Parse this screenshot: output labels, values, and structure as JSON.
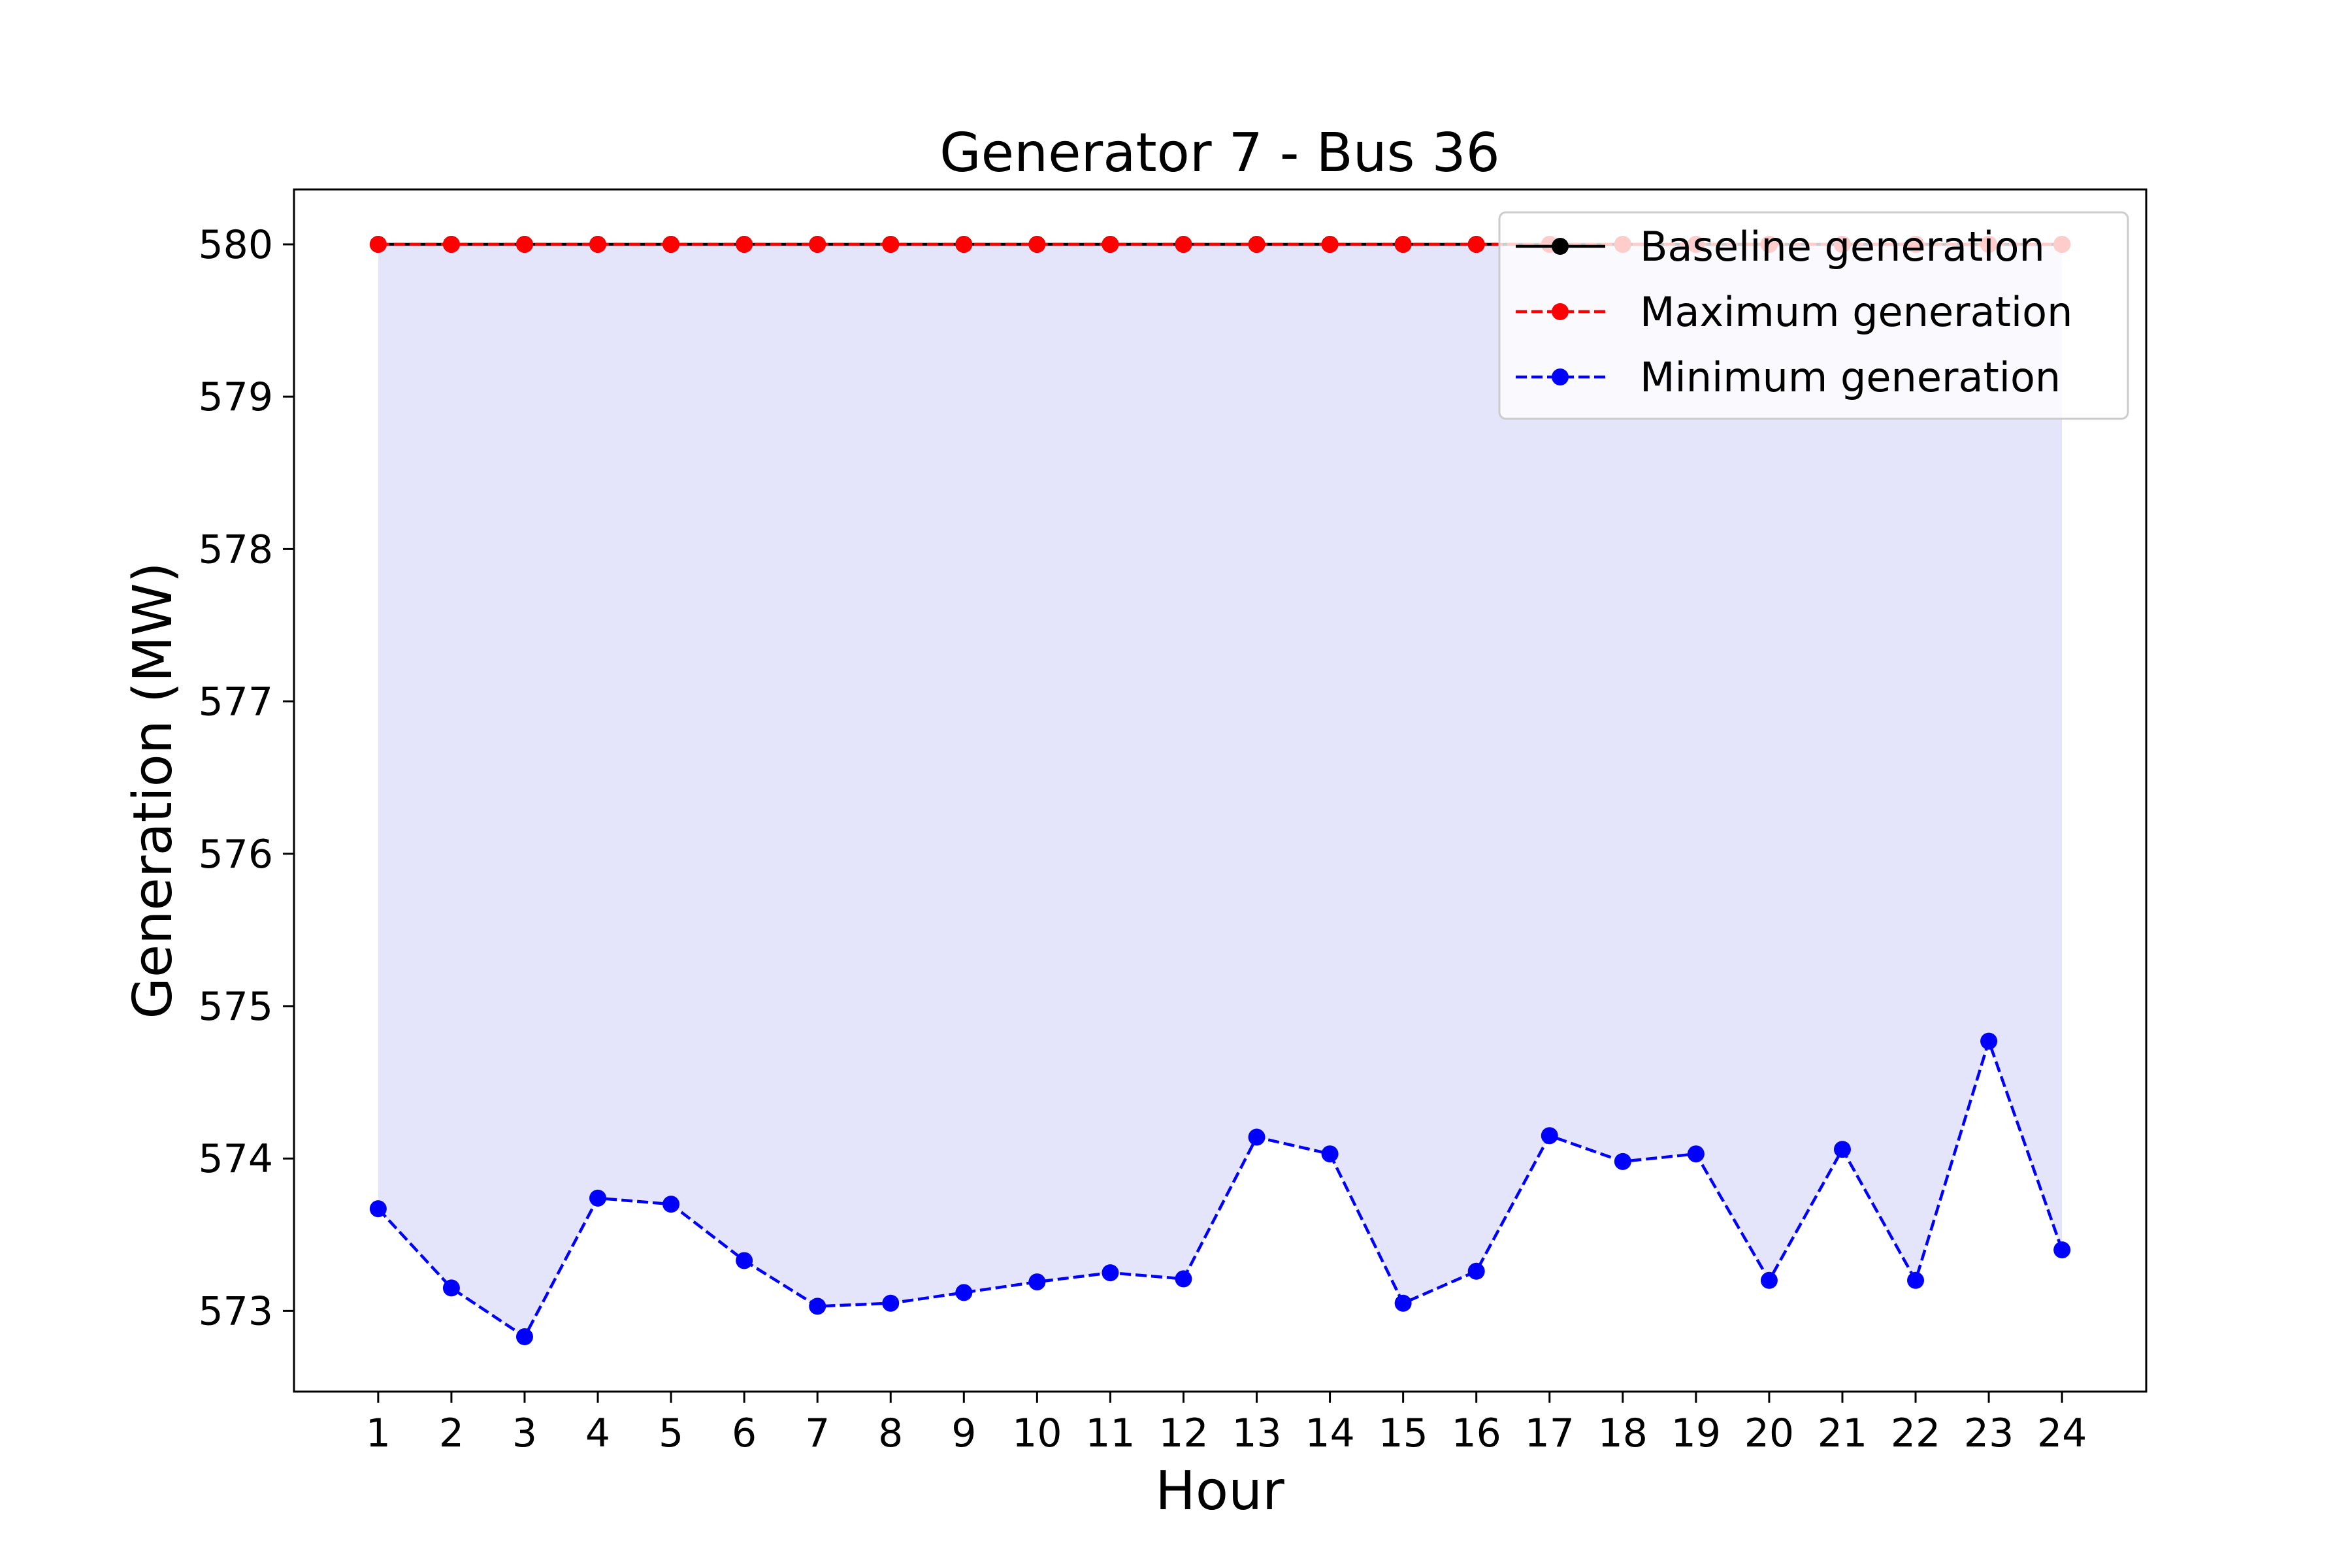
{
  "chart_data": {
    "type": "line",
    "title": "Generator 7 - Bus 36",
    "xlabel": "Hour",
    "ylabel": "Generation (MW)",
    "categories": [
      "1",
      "2",
      "3",
      "4",
      "5",
      "6",
      "7",
      "8",
      "9",
      "10",
      "11",
      "12",
      "13",
      "14",
      "15",
      "16",
      "17",
      "18",
      "19",
      "20",
      "21",
      "22",
      "23",
      "24"
    ],
    "x": [
      1,
      2,
      3,
      4,
      5,
      6,
      7,
      8,
      9,
      10,
      11,
      12,
      13,
      14,
      15,
      16,
      17,
      18,
      19,
      20,
      21,
      22,
      23,
      24
    ],
    "xlim": [
      -0.15,
      25.15
    ],
    "ylim": [
      572.47,
      580.36
    ],
    "yticks": [
      573,
      574,
      575,
      576,
      577,
      578,
      579,
      580
    ],
    "ytick_labels": [
      "573",
      "574",
      "575",
      "576",
      "577",
      "578",
      "579",
      "580"
    ],
    "grid": false,
    "legend_position": "upper right",
    "fill_between": {
      "from_series": "Minimum generation",
      "to_series": "Maximum generation",
      "color": "#e4e4fb"
    },
    "series": [
      {
        "name": "Baseline generation",
        "color": "#000000",
        "linestyle": "solid",
        "marker": "circle",
        "values": [
          580,
          580,
          580,
          580,
          580,
          580,
          580,
          580,
          580,
          580,
          580,
          580,
          580,
          580,
          580,
          580,
          580,
          580,
          580,
          580,
          580,
          580,
          580,
          580
        ]
      },
      {
        "name": "Maximum generation",
        "color": "#ff0000",
        "linestyle": "dashed",
        "marker": "circle",
        "values": [
          580,
          580,
          580,
          580,
          580,
          580,
          580,
          580,
          580,
          580,
          580,
          580,
          580,
          580,
          580,
          580,
          580,
          580,
          580,
          580,
          580,
          580,
          580,
          580
        ]
      },
      {
        "name": "Minimum generation",
        "color": "#0000ff",
        "linestyle": "dashed",
        "marker": "circle",
        "values": [
          573.67,
          573.15,
          572.83,
          573.74,
          573.7,
          573.33,
          573.03,
          573.05,
          573.12,
          573.19,
          573.25,
          573.21,
          574.14,
          574.03,
          573.05,
          573.26,
          574.15,
          573.98,
          574.03,
          573.2,
          574.06,
          573.2,
          574.77,
          573.4
        ]
      }
    ]
  }
}
